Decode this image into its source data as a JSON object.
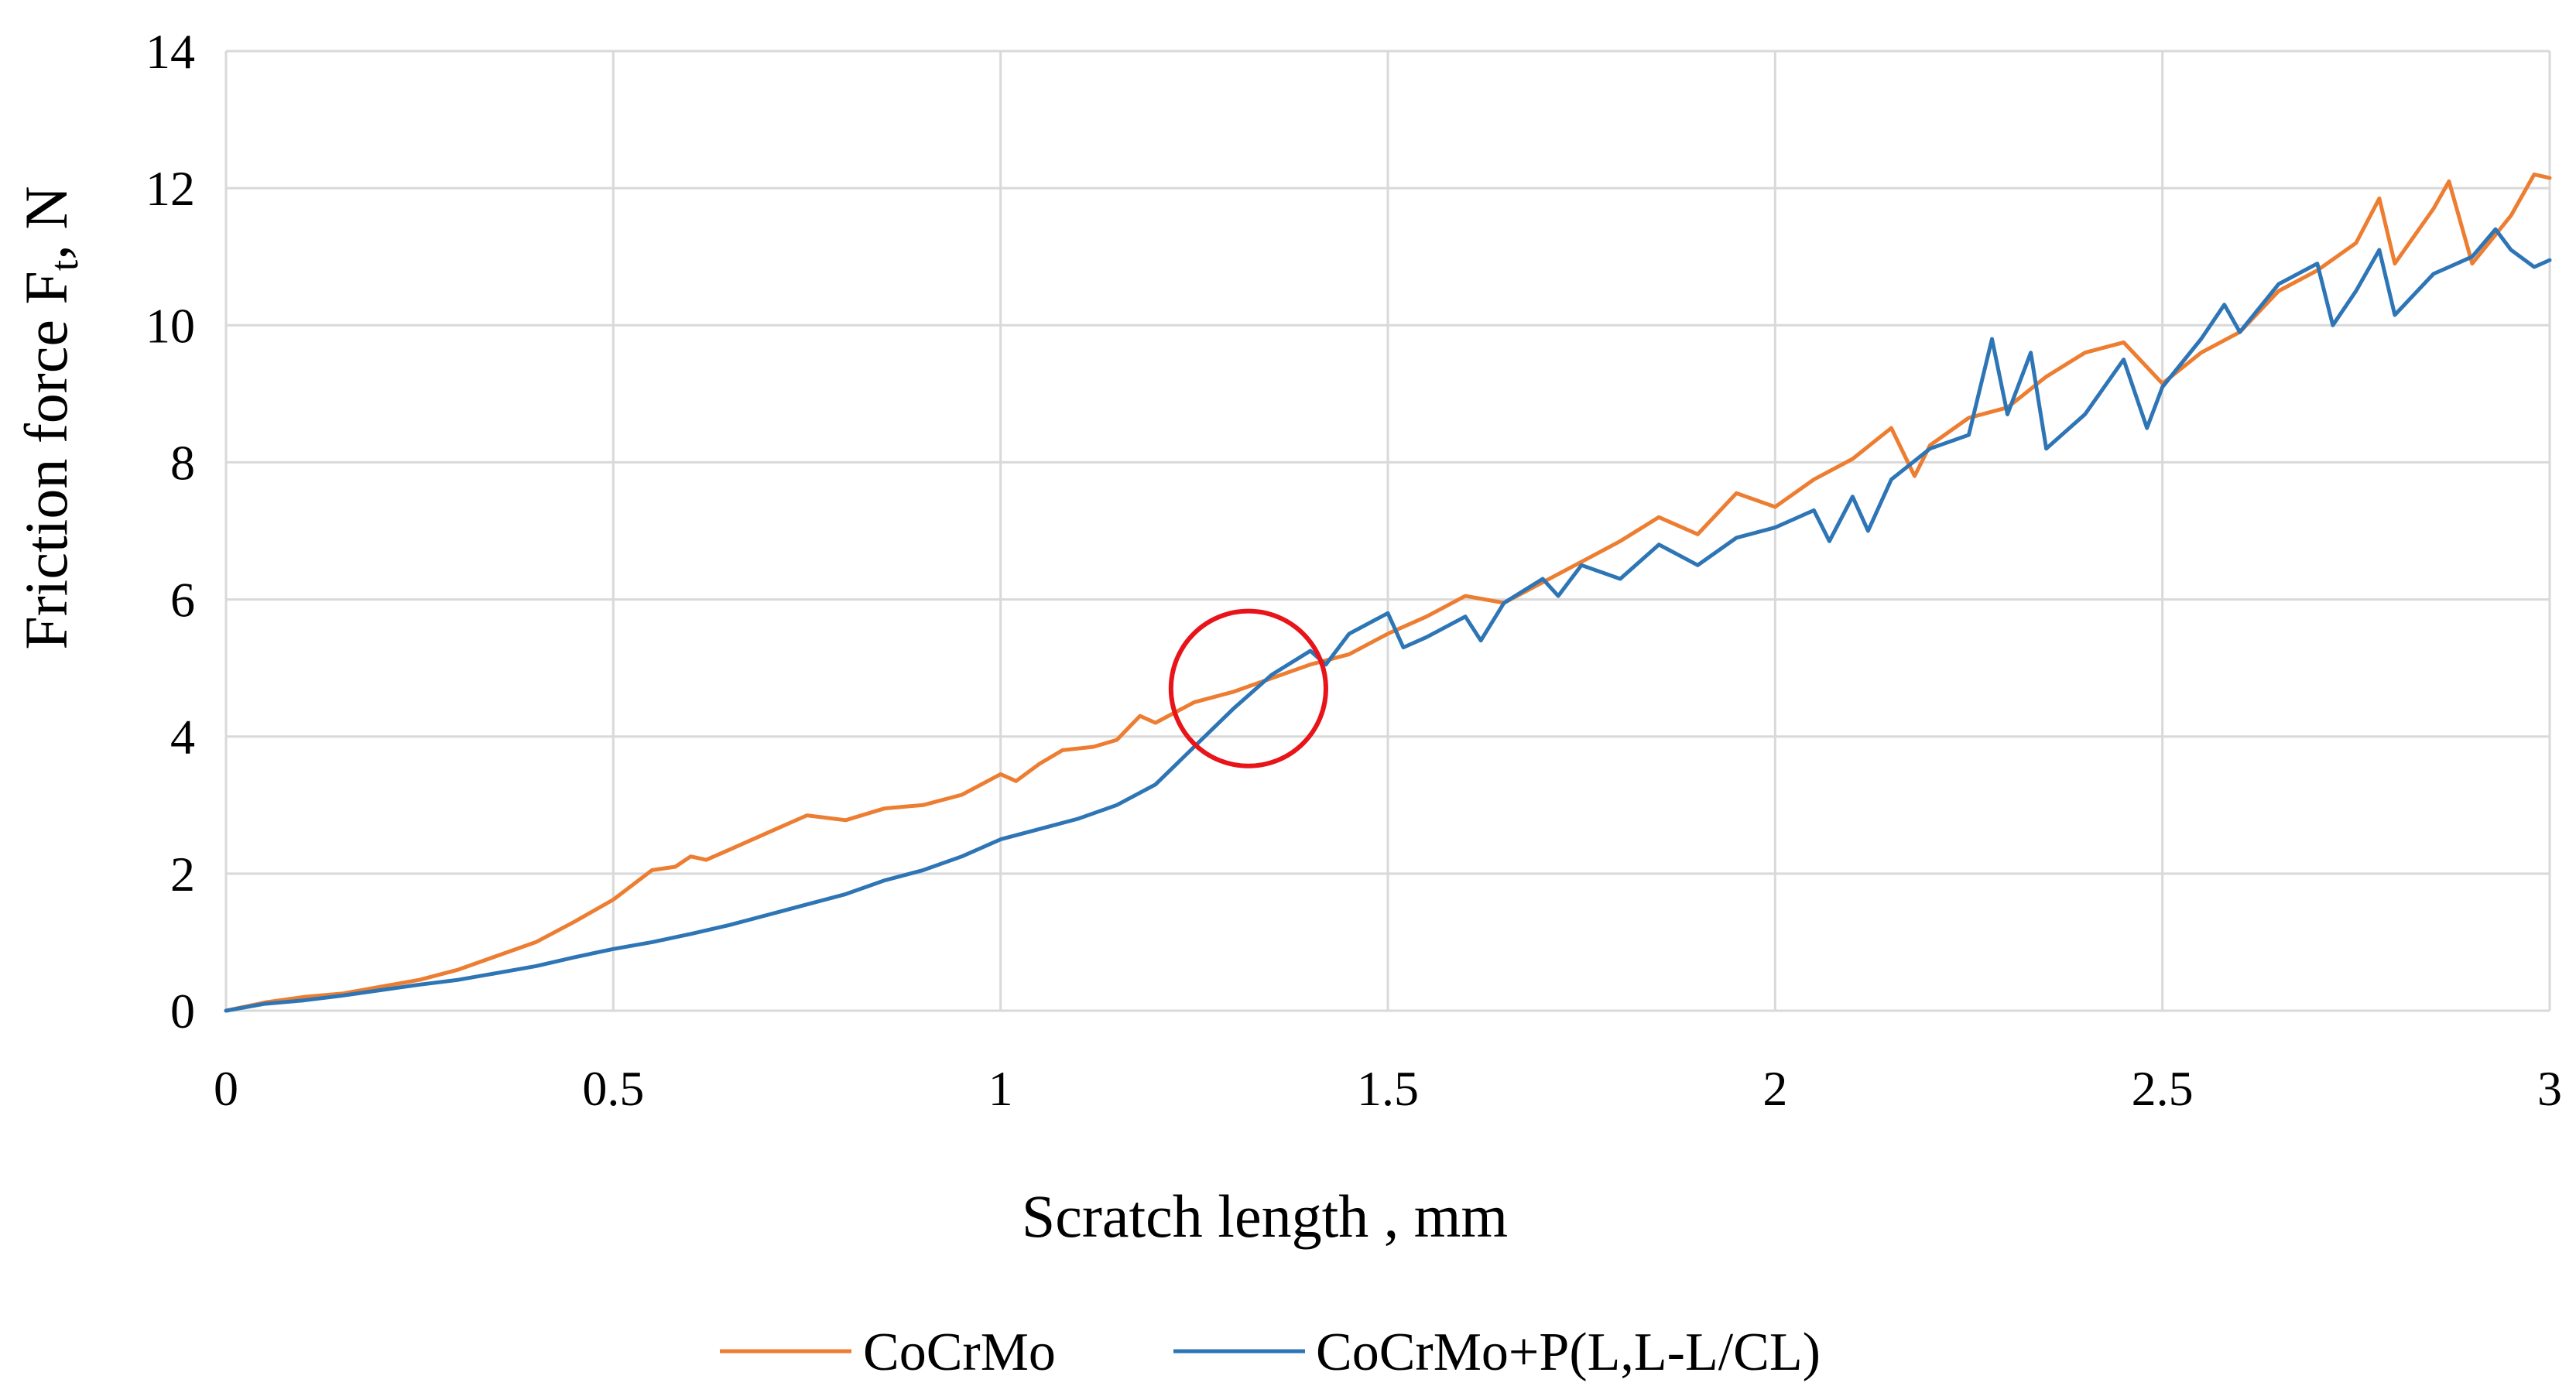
{
  "chart_data": {
    "type": "line",
    "title": "",
    "xlabel": "Scratch length , mm",
    "ylabel": "Friction force F",
    "ylabel_subscript": "t",
    "ylabel_suffix": ", N",
    "xlim": [
      0,
      3
    ],
    "ylim": [
      0,
      14
    ],
    "xticks": [
      0,
      0.5,
      1,
      1.5,
      2,
      2.5,
      3
    ],
    "xtick_labels": [
      "0",
      "0.5",
      "1",
      "1.5",
      "2",
      "2.5",
      "3"
    ],
    "yticks": [
      0,
      2,
      4,
      6,
      8,
      10,
      12,
      14
    ],
    "ytick_labels": [
      "0",
      "2",
      "4",
      "6",
      "8",
      "10",
      "12",
      "14"
    ],
    "grid": true,
    "legend_position": "bottom",
    "annotation": {
      "type": "circle",
      "x": 1.32,
      "y": 4.7,
      "radius_x": 0.1,
      "color": "#e8141a",
      "label": "highlighted crossover region"
    },
    "series": [
      {
        "name": "CoCrMo",
        "color": "#ed7d31",
        "points": [
          [
            0,
            0
          ],
          [
            0.05,
            0.12
          ],
          [
            0.1,
            0.2
          ],
          [
            0.15,
            0.25
          ],
          [
            0.2,
            0.35
          ],
          [
            0.25,
            0.45
          ],
          [
            0.3,
            0.6
          ],
          [
            0.35,
            0.8
          ],
          [
            0.4,
            1.0
          ],
          [
            0.45,
            1.3
          ],
          [
            0.5,
            1.62
          ],
          [
            0.55,
            2.05
          ],
          [
            0.58,
            2.1
          ],
          [
            0.6,
            2.25
          ],
          [
            0.62,
            2.2
          ],
          [
            0.65,
            2.35
          ],
          [
            0.7,
            2.6
          ],
          [
            0.75,
            2.85
          ],
          [
            0.8,
            2.78
          ],
          [
            0.85,
            2.95
          ],
          [
            0.9,
            3.0
          ],
          [
            0.95,
            3.15
          ],
          [
            1.0,
            3.45
          ],
          [
            1.02,
            3.35
          ],
          [
            1.05,
            3.6
          ],
          [
            1.08,
            3.8
          ],
          [
            1.12,
            3.85
          ],
          [
            1.15,
            3.95
          ],
          [
            1.18,
            4.3
          ],
          [
            1.2,
            4.2
          ],
          [
            1.25,
            4.5
          ],
          [
            1.3,
            4.65
          ],
          [
            1.35,
            4.85
          ],
          [
            1.4,
            5.05
          ],
          [
            1.45,
            5.2
          ],
          [
            1.5,
            5.5
          ],
          [
            1.55,
            5.75
          ],
          [
            1.6,
            6.05
          ],
          [
            1.65,
            5.95
          ],
          [
            1.7,
            6.25
          ],
          [
            1.75,
            6.55
          ],
          [
            1.8,
            6.85
          ],
          [
            1.85,
            7.2
          ],
          [
            1.9,
            6.95
          ],
          [
            1.95,
            7.55
          ],
          [
            2.0,
            7.35
          ],
          [
            2.05,
            7.75
          ],
          [
            2.1,
            8.05
          ],
          [
            2.15,
            8.5
          ],
          [
            2.18,
            7.8
          ],
          [
            2.2,
            8.25
          ],
          [
            2.25,
            8.65
          ],
          [
            2.3,
            8.8
          ],
          [
            2.35,
            9.25
          ],
          [
            2.4,
            9.6
          ],
          [
            2.45,
            9.75
          ],
          [
            2.5,
            9.15
          ],
          [
            2.55,
            9.6
          ],
          [
            2.6,
            9.9
          ],
          [
            2.65,
            10.5
          ],
          [
            2.7,
            10.8
          ],
          [
            2.75,
            11.2
          ],
          [
            2.78,
            11.85
          ],
          [
            2.8,
            10.9
          ],
          [
            2.85,
            11.7
          ],
          [
            2.87,
            12.1
          ],
          [
            2.9,
            10.9
          ],
          [
            2.95,
            11.6
          ],
          [
            2.98,
            12.2
          ],
          [
            3.0,
            12.15
          ]
        ]
      },
      {
        "name": "CoCrMo+P(L,L-L/CL)",
        "color": "#2e75b6",
        "points": [
          [
            0,
            0
          ],
          [
            0.05,
            0.1
          ],
          [
            0.1,
            0.15
          ],
          [
            0.15,
            0.22
          ],
          [
            0.2,
            0.3
          ],
          [
            0.25,
            0.38
          ],
          [
            0.3,
            0.45
          ],
          [
            0.35,
            0.55
          ],
          [
            0.4,
            0.65
          ],
          [
            0.45,
            0.78
          ],
          [
            0.5,
            0.9
          ],
          [
            0.55,
            1.0
          ],
          [
            0.6,
            1.12
          ],
          [
            0.65,
            1.25
          ],
          [
            0.7,
            1.4
          ],
          [
            0.75,
            1.55
          ],
          [
            0.8,
            1.7
          ],
          [
            0.85,
            1.9
          ],
          [
            0.9,
            2.05
          ],
          [
            0.95,
            2.25
          ],
          [
            1.0,
            2.5
          ],
          [
            1.05,
            2.65
          ],
          [
            1.1,
            2.8
          ],
          [
            1.15,
            3.0
          ],
          [
            1.2,
            3.3
          ],
          [
            1.25,
            3.85
          ],
          [
            1.3,
            4.4
          ],
          [
            1.35,
            4.9
          ],
          [
            1.4,
            5.25
          ],
          [
            1.42,
            5.05
          ],
          [
            1.45,
            5.5
          ],
          [
            1.5,
            5.8
          ],
          [
            1.52,
            5.3
          ],
          [
            1.55,
            5.45
          ],
          [
            1.6,
            5.75
          ],
          [
            1.62,
            5.4
          ],
          [
            1.65,
            5.95
          ],
          [
            1.7,
            6.3
          ],
          [
            1.72,
            6.05
          ],
          [
            1.75,
            6.5
          ],
          [
            1.8,
            6.3
          ],
          [
            1.85,
            6.8
          ],
          [
            1.9,
            6.5
          ],
          [
            1.95,
            6.9
          ],
          [
            2.0,
            7.05
          ],
          [
            2.05,
            7.3
          ],
          [
            2.07,
            6.85
          ],
          [
            2.1,
            7.5
          ],
          [
            2.12,
            7.0
          ],
          [
            2.15,
            7.75
          ],
          [
            2.2,
            8.2
          ],
          [
            2.25,
            8.4
          ],
          [
            2.28,
            9.8
          ],
          [
            2.3,
            8.7
          ],
          [
            2.33,
            9.6
          ],
          [
            2.35,
            8.2
          ],
          [
            2.4,
            8.7
          ],
          [
            2.45,
            9.5
          ],
          [
            2.48,
            8.5
          ],
          [
            2.5,
            9.1
          ],
          [
            2.55,
            9.8
          ],
          [
            2.58,
            10.3
          ],
          [
            2.6,
            9.9
          ],
          [
            2.65,
            10.6
          ],
          [
            2.7,
            10.9
          ],
          [
            2.72,
            10.0
          ],
          [
            2.75,
            10.5
          ],
          [
            2.78,
            11.1
          ],
          [
            2.8,
            10.15
          ],
          [
            2.85,
            10.75
          ],
          [
            2.88,
            10.9
          ],
          [
            2.9,
            11.0
          ],
          [
            2.93,
            11.4
          ],
          [
            2.95,
            11.1
          ],
          [
            2.98,
            10.85
          ],
          [
            3.0,
            10.95
          ]
        ]
      }
    ]
  }
}
